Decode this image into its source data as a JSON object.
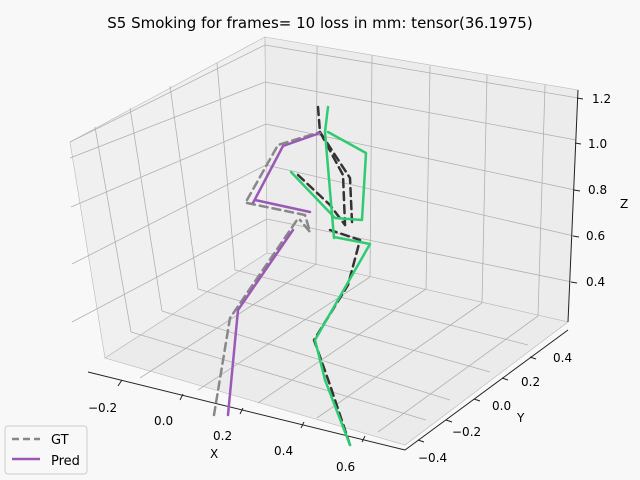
{
  "chart_data": {
    "type": "line",
    "title": "S5 Smoking for frames= 10 loss in mm: tensor(36.1975)",
    "xlabel": "X",
    "ylabel": "Y",
    "zlabel": "Z",
    "x_ticks": [
      "−0.2",
      "0.0",
      "0.2",
      "0.4",
      "0.6"
    ],
    "y_ticks": [
      "−0.4",
      "−0.2",
      "0.0",
      "0.2",
      "0.4"
    ],
    "z_ticks": [
      "0.4",
      "0.6",
      "0.8",
      "1.0",
      "1.2"
    ],
    "grid": true,
    "legend_position": "lower-left",
    "series": [
      {
        "name": "GT",
        "style": "dashed",
        "colors": {
          "left": "#888888",
          "right": "#333333"
        }
      },
      {
        "name": "Pred",
        "style": "solid",
        "colors": {
          "left": "#9b59b6",
          "right": "#2ecc71"
        }
      }
    ]
  }
}
